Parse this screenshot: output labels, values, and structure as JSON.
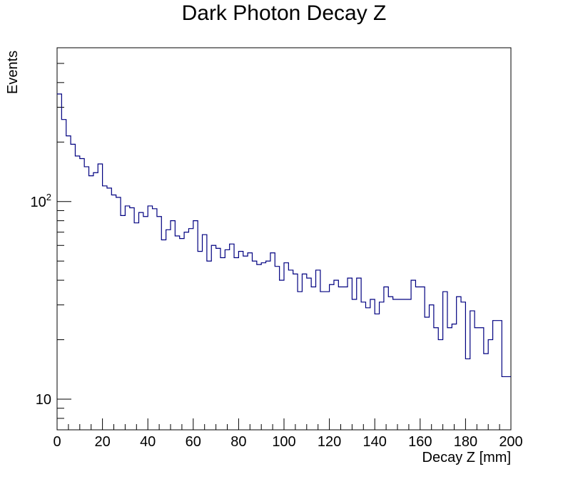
{
  "chart_data": {
    "type": "histogram",
    "title": "Dark Photon Decay Z",
    "xlabel": "Decay Z [mm]",
    "ylabel": "Events",
    "yscale": "log",
    "xlim": [
      0,
      200
    ],
    "ylim": [
      7,
      600
    ],
    "x_ticks": [
      0,
      20,
      40,
      60,
      80,
      100,
      120,
      140,
      160,
      180,
      200
    ],
    "y_tick_labels": [
      {
        "value": 10,
        "base": "10",
        "exp": ""
      },
      {
        "value": 100,
        "base": "10",
        "exp": "2"
      }
    ],
    "line_color": "#000080",
    "bin_width": 2,
    "values": [
      350,
      260,
      215,
      195,
      170,
      165,
      150,
      135,
      140,
      155,
      120,
      117,
      108,
      105,
      85,
      95,
      93,
      78,
      88,
      84,
      95,
      92,
      84,
      64,
      72,
      80,
      67,
      65,
      70,
      73,
      80,
      56,
      68,
      50,
      60,
      58,
      52,
      57,
      61,
      52,
      56,
      53,
      55,
      50,
      48,
      49,
      50,
      55,
      47,
      40,
      49,
      45,
      43,
      35,
      43,
      41,
      37,
      45,
      35,
      35,
      38,
      40,
      37,
      37,
      41,
      32,
      41,
      31,
      29,
      32,
      27,
      31,
      37,
      33,
      32,
      32,
      32,
      32,
      40,
      37,
      37,
      26,
      30,
      23,
      20,
      35,
      23,
      24,
      33,
      31,
      16,
      28,
      23,
      23,
      17,
      20,
      25,
      25,
      13,
      13
    ]
  }
}
